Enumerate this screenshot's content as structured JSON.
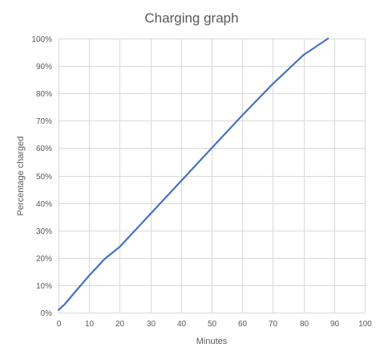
{
  "chart_data": {
    "type": "line",
    "title": "Charging graph",
    "xlabel": "Minutes",
    "ylabel": "Percentage charged",
    "xlim": [
      0,
      100
    ],
    "ylim": [
      0,
      100
    ],
    "x_ticks": [
      0,
      10,
      20,
      30,
      40,
      50,
      60,
      70,
      80,
      90,
      100
    ],
    "y_ticks": [
      0,
      10,
      20,
      30,
      40,
      50,
      60,
      70,
      80,
      90,
      100
    ],
    "x_tick_labels": [
      "0",
      "10",
      "20",
      "30",
      "40",
      "50",
      "60",
      "70",
      "80",
      "90",
      "100"
    ],
    "y_tick_labels": [
      "0%",
      "10%",
      "20%",
      "30%",
      "40%",
      "50%",
      "60%",
      "70%",
      "80%",
      "90%",
      "100%"
    ],
    "grid": true,
    "series": [
      {
        "color": "#4472c4",
        "x": [
          0,
          2,
          5,
          10,
          15,
          20,
          30,
          40,
          50,
          60,
          70,
          80,
          88
        ],
        "y": [
          1,
          3,
          7,
          13.5,
          19.5,
          24,
          36,
          48,
          60,
          72,
          83.5,
          94,
          100
        ]
      }
    ]
  }
}
